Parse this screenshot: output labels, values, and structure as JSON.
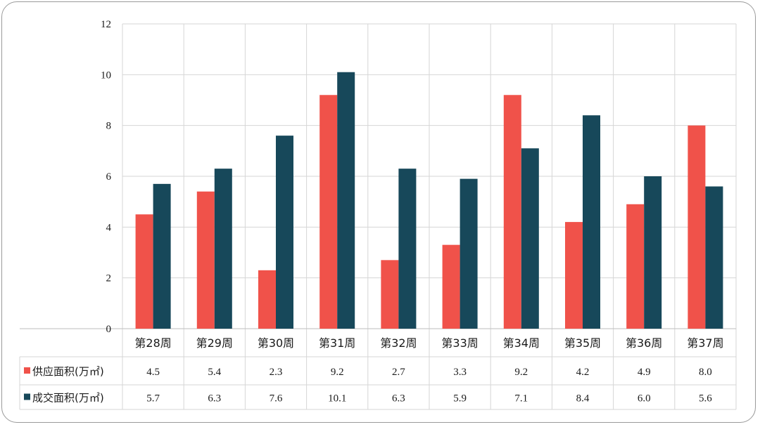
{
  "chart_data": {
    "type": "bar",
    "categories": [
      "第28周",
      "第29周",
      "第30周",
      "第31周",
      "第32周",
      "第33周",
      "第34周",
      "第35周",
      "第36周",
      "第37周"
    ],
    "series": [
      {
        "name": "供应面积(万㎡)",
        "color": "#f0524a",
        "values": [
          4.5,
          5.4,
          2.3,
          9.2,
          2.7,
          3.3,
          9.2,
          4.2,
          4.9,
          8.0
        ],
        "labels": [
          "4.5",
          "5.4",
          "2.3",
          "9.2",
          "2.7",
          "3.3",
          "9.2",
          "4.2",
          "4.9",
          "8.0"
        ]
      },
      {
        "name": "成交面积(万㎡)",
        "color": "#17485a",
        "values": [
          5.7,
          6.3,
          7.6,
          10.1,
          6.3,
          5.9,
          7.1,
          8.4,
          6.0,
          5.6
        ],
        "labels": [
          "5.7",
          "6.3",
          "7.6",
          "10.1",
          "6.3",
          "5.9",
          "7.1",
          "8.4",
          "6.0",
          "5.6"
        ]
      }
    ],
    "ylim": [
      0,
      12
    ],
    "yticks": [
      0,
      2,
      4,
      6,
      8,
      10,
      12
    ],
    "grid": true,
    "legend": "data-table"
  }
}
